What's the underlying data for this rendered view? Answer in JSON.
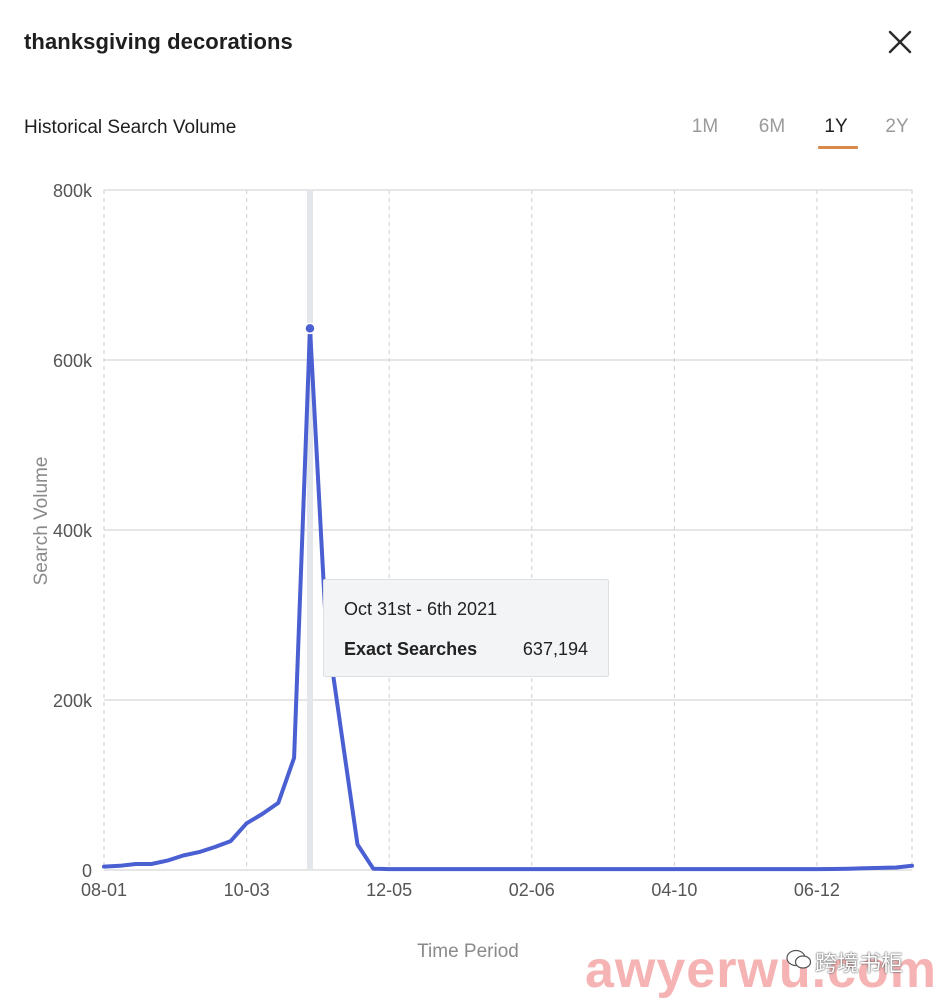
{
  "header": {
    "title": "thanksgiving decorations"
  },
  "section": {
    "title": "Historical Search Volume"
  },
  "range_tabs": [
    {
      "label": "1M",
      "active": false
    },
    {
      "label": "6M",
      "active": false
    },
    {
      "label": "1Y",
      "active": true
    },
    {
      "label": "2Y",
      "active": false
    }
  ],
  "tooltip": {
    "date": "Oct 31st - 6th 2021",
    "label": "Exact Searches",
    "value": "637,194"
  },
  "watermark": {
    "latin": "awyerwu.com",
    "cjk": "跨境书柜"
  },
  "colors": {
    "line": "#4a5fd1",
    "accent_tab": "#d98a4a",
    "grid": "#d6d6d6"
  },
  "chart_data": {
    "type": "line",
    "title": "",
    "xlabel": "Time Period",
    "ylabel": "Search Volume",
    "ylim": [
      0,
      800000
    ],
    "y_ticks": [
      {
        "value": 0,
        "label": "0"
      },
      {
        "value": 200000,
        "label": "200k"
      },
      {
        "value": 400000,
        "label": "400k"
      },
      {
        "value": 600000,
        "label": "600k"
      },
      {
        "value": 800000,
        "label": "800k"
      }
    ],
    "x_ticks": [
      {
        "index": 0,
        "label": "08-01"
      },
      {
        "index": 9,
        "label": "10-03"
      },
      {
        "index": 18,
        "label": "12-05"
      },
      {
        "index": 27,
        "label": "02-06"
      },
      {
        "index": 36,
        "label": "04-10"
      },
      {
        "index": 45,
        "label": "06-12"
      }
    ],
    "grid": true,
    "highlight_index": 13,
    "series": [
      {
        "values": [
          4000,
          5000,
          7000,
          7000,
          11000,
          17000,
          21000,
          27000,
          34000,
          55000,
          66000,
          79000,
          132000,
          637194,
          290000,
          160000,
          30000,
          1500,
          1000,
          1000,
          1000,
          1000,
          1000,
          1000,
          1000,
          1000,
          1000,
          1000,
          1000,
          1000,
          1000,
          1000,
          1000,
          1000,
          1000,
          1000,
          1000,
          1000,
          1000,
          1000,
          1000,
          1000,
          1000,
          1000,
          1000,
          1000,
          1200,
          1500,
          2000,
          2500,
          3000,
          5000
        ]
      }
    ]
  }
}
